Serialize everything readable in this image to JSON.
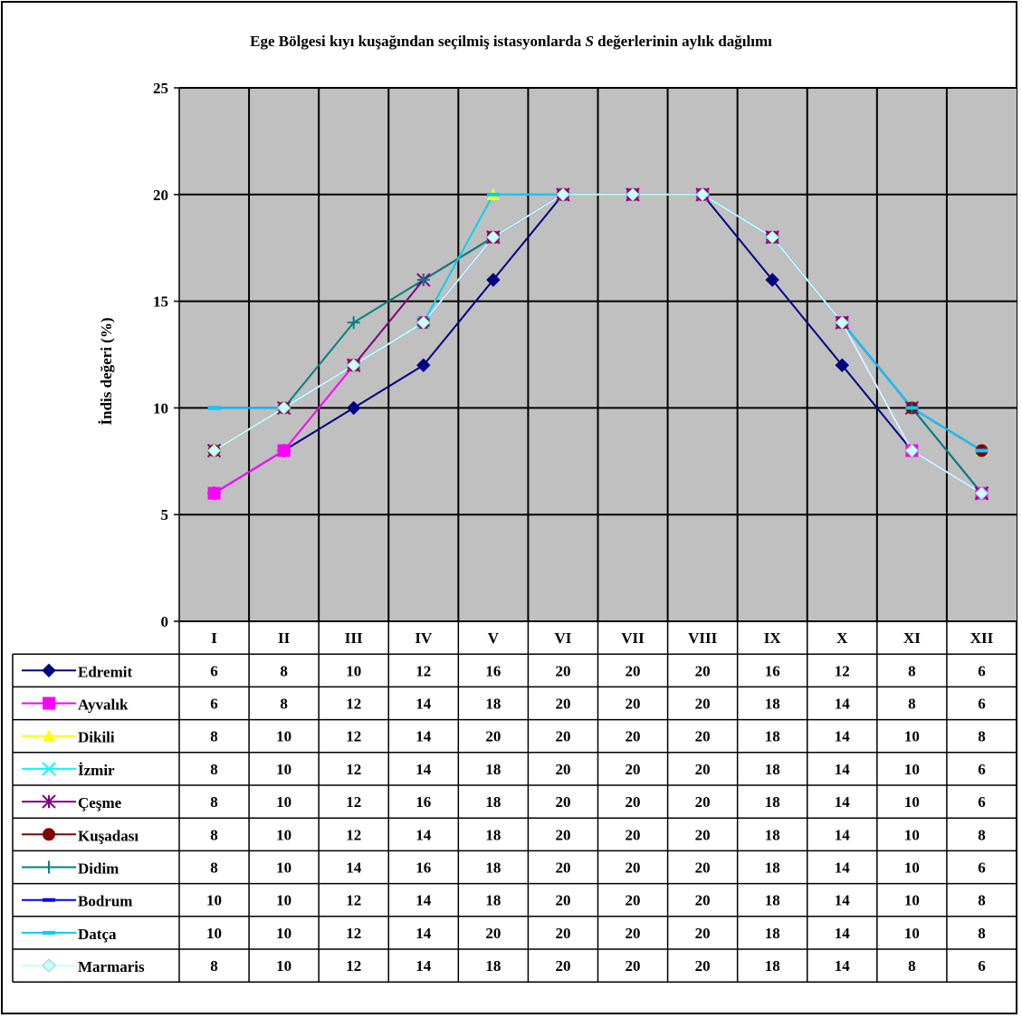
{
  "chart_data": {
    "type": "line",
    "title_parts": [
      "Ege Bölgesi kıyı kuşağından seçilmiş istasyonlarda ",
      "S",
      " değerlerinin aylık dağılımı"
    ],
    "ylabel": "İndis değeri (%)",
    "xlabel": "",
    "ylim": [
      0,
      25
    ],
    "yticks": [
      0,
      5,
      10,
      15,
      20,
      25
    ],
    "grid": true,
    "categories": [
      "I",
      "II",
      "III",
      "IV",
      "V",
      "VI",
      "VII",
      "VIII",
      "IX",
      "X",
      "XI",
      "XII"
    ],
    "series": [
      {
        "name": "Edremit",
        "color": "#000080",
        "marker": "diamond",
        "values": [
          6,
          8,
          10,
          12,
          16,
          20,
          20,
          20,
          16,
          12,
          8,
          6
        ]
      },
      {
        "name": "Ayvalık",
        "color": "#ff00ff",
        "marker": "square",
        "values": [
          6,
          8,
          12,
          14,
          18,
          20,
          20,
          20,
          18,
          14,
          8,
          6
        ]
      },
      {
        "name": "Dikili",
        "color": "#ffff00",
        "marker": "triangle",
        "values": [
          8,
          10,
          12,
          14,
          20,
          20,
          20,
          20,
          18,
          14,
          10,
          8
        ]
      },
      {
        "name": "İzmir",
        "color": "#00ffff",
        "marker": "x",
        "values": [
          8,
          10,
          12,
          14,
          18,
          20,
          20,
          20,
          18,
          14,
          10,
          6
        ]
      },
      {
        "name": "Çeşme",
        "color": "#800080",
        "marker": "star",
        "values": [
          8,
          10,
          12,
          16,
          18,
          20,
          20,
          20,
          18,
          14,
          10,
          6
        ]
      },
      {
        "name": "Kuşadası",
        "color": "#800000",
        "marker": "circle",
        "values": [
          8,
          10,
          12,
          14,
          18,
          20,
          20,
          20,
          18,
          14,
          10,
          8
        ]
      },
      {
        "name": "Didim",
        "color": "#008080",
        "marker": "plus",
        "values": [
          8,
          10,
          14,
          16,
          18,
          20,
          20,
          20,
          18,
          14,
          10,
          6
        ]
      },
      {
        "name": "Bodrum",
        "color": "#0000ff",
        "marker": "dash",
        "values": [
          10,
          10,
          12,
          14,
          18,
          20,
          20,
          20,
          18,
          14,
          10,
          8
        ]
      },
      {
        "name": "Datça",
        "color": "#00ccff",
        "marker": "dash",
        "values": [
          10,
          10,
          12,
          14,
          20,
          20,
          20,
          20,
          18,
          14,
          10,
          8
        ]
      },
      {
        "name": "Marmaris",
        "color": "#ccffff",
        "marker": "diamond",
        "values": [
          8,
          10,
          12,
          14,
          18,
          20,
          20,
          20,
          18,
          14,
          8,
          6
        ]
      }
    ],
    "plot_background": "#c0c0c0"
  }
}
